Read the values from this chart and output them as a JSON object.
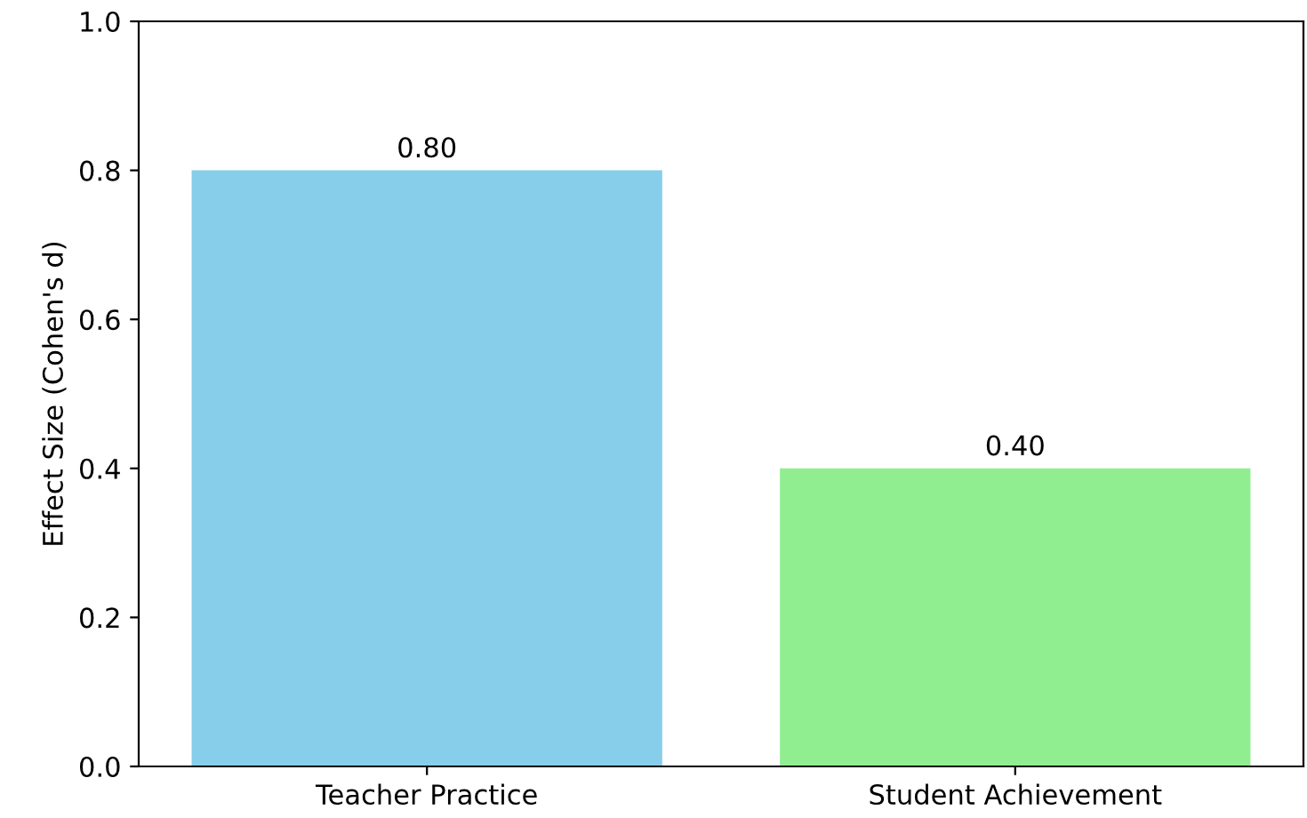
{
  "chart_data": {
    "type": "bar",
    "ylabel": "Effect Size (Cohen's d)",
    "categories": [
      "Teacher Practice",
      "Student Achievement"
    ],
    "values": [
      0.8,
      0.4
    ],
    "colors": [
      "#87ceeb",
      "#90ee90"
    ],
    "ylim": [
      0,
      1.0
    ],
    "yticks": [
      {
        "value": 0,
        "label": "0.0"
      },
      0.2,
      0.4,
      0.6,
      0.8,
      {
        "value": 1,
        "label": "1.0"
      }
    ],
    "value_labels": [
      "0.80",
      "0.40"
    ],
    "grid": false
  }
}
